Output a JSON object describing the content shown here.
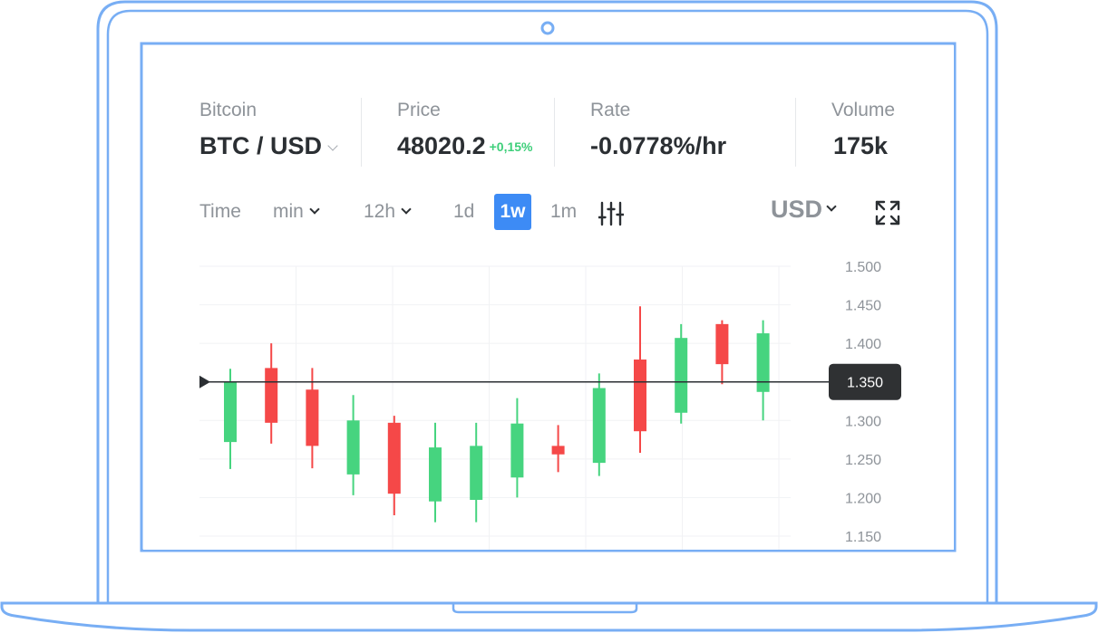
{
  "header": {
    "pair": {
      "label": "Bitcoin",
      "value": "BTC / USD"
    },
    "price": {
      "label": "Price",
      "value": "48020.2",
      "change": "+0,15%"
    },
    "rate": {
      "label": "Rate",
      "value": "-0.0778%/hr"
    },
    "volume": {
      "label": "Volume",
      "value": "175k"
    }
  },
  "toolbar": {
    "time_label": "Time",
    "intervals": [
      {
        "label": "min",
        "dropdown": true
      },
      {
        "label": "12h",
        "dropdown": true
      },
      {
        "label": "1d",
        "dropdown": false
      },
      {
        "label": "1w",
        "dropdown": false,
        "active": true
      },
      {
        "label": "1m",
        "dropdown": false
      }
    ],
    "currency": "USD",
    "icons": [
      "sliders-icon",
      "expand-icon"
    ]
  },
  "colors": {
    "up": "#46d47f",
    "down": "#f54848",
    "accent": "#3d8bf5",
    "frame": "#78aef4"
  },
  "chart_data": {
    "type": "candlestick",
    "ylim": [
      1.15,
      1.5
    ],
    "y_ticks": [
      "1.500",
      "1.450",
      "1.400",
      "1.350",
      "1.300",
      "1.250",
      "1.200",
      "1.150"
    ],
    "current_price": "1.350",
    "current_value": 1.35,
    "grid": true,
    "candles": [
      {
        "open": 1.272,
        "close": 1.35,
        "high": 1.367,
        "low": 1.237
      },
      {
        "open": 1.368,
        "close": 1.297,
        "high": 1.4,
        "low": 1.27
      },
      {
        "open": 1.34,
        "close": 1.267,
        "high": 1.368,
        "low": 1.238
      },
      {
        "open": 1.23,
        "close": 1.3,
        "high": 1.333,
        "low": 1.203
      },
      {
        "open": 1.297,
        "close": 1.205,
        "high": 1.306,
        "low": 1.177
      },
      {
        "open": 1.195,
        "close": 1.265,
        "high": 1.297,
        "low": 1.168
      },
      {
        "open": 1.197,
        "close": 1.267,
        "high": 1.297,
        "low": 1.168
      },
      {
        "open": 1.226,
        "close": 1.296,
        "high": 1.329,
        "low": 1.2
      },
      {
        "open": 1.267,
        "close": 1.256,
        "high": 1.294,
        "low": 1.233
      },
      {
        "open": 1.245,
        "close": 1.342,
        "high": 1.361,
        "low": 1.228
      },
      {
        "open": 1.379,
        "close": 1.286,
        "high": 1.448,
        "low": 1.258
      },
      {
        "open": 1.31,
        "close": 1.407,
        "high": 1.425,
        "low": 1.296
      },
      {
        "open": 1.425,
        "close": 1.373,
        "high": 1.43,
        "low": 1.347
      },
      {
        "open": 1.337,
        "close": 1.413,
        "high": 1.43,
        "low": 1.3
      }
    ]
  }
}
